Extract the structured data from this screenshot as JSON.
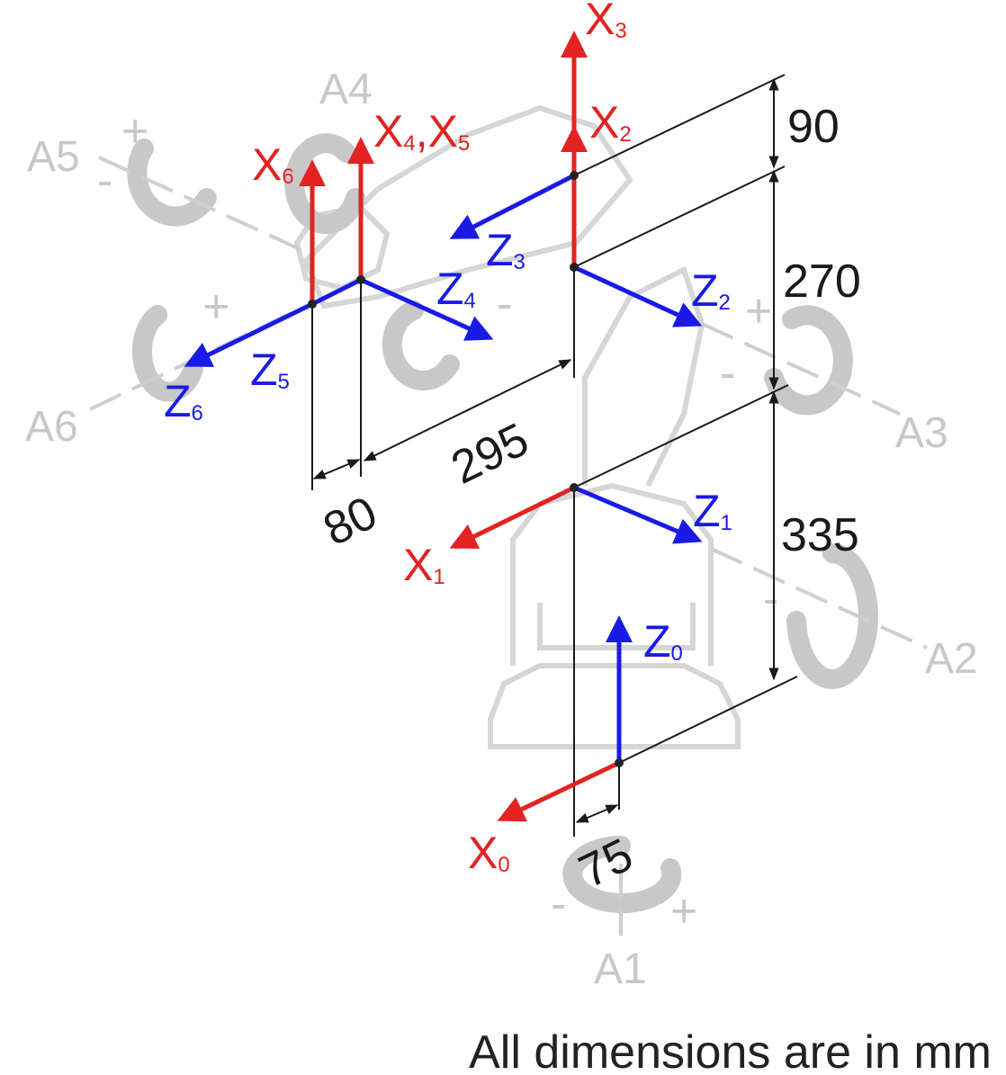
{
  "note": "All dimensions are in mm",
  "colors": {
    "x_axis": "#e32222",
    "z_axis": "#1a1ae6",
    "dimension": "#1a1a1a",
    "ghost": "#c8c8c8"
  },
  "dimensions": {
    "d90": "90",
    "d270": "270",
    "d335": "335",
    "d295": "295",
    "d80": "80",
    "d75": "75"
  },
  "frames": {
    "x0": {
      "main": "X",
      "sub": "0"
    },
    "z0": {
      "main": "Z",
      "sub": "0"
    },
    "x1": {
      "main": "X",
      "sub": "1"
    },
    "z1": {
      "main": "Z",
      "sub": "1"
    },
    "x2": {
      "main": "X",
      "sub": "2"
    },
    "z2": {
      "main": "Z",
      "sub": "2"
    },
    "x3": {
      "main": "X",
      "sub": "3"
    },
    "z3": {
      "main": "Z",
      "sub": "3"
    },
    "x45": {
      "main1": "X",
      "sub1": "4",
      "sep": ",",
      "main2": "X",
      "sub2": "5"
    },
    "z4": {
      "main": "Z",
      "sub": "4"
    },
    "z5": {
      "main": "Z",
      "sub": "5"
    },
    "x6": {
      "main": "X",
      "sub": "6"
    },
    "z6": {
      "main": "Z",
      "sub": "6"
    }
  },
  "joints": {
    "a1": "A1",
    "a2": "A2",
    "a3": "A3",
    "a4": "A4",
    "a5": "A5",
    "a6": "A6"
  },
  "signs": {
    "plus": "+",
    "minus": "-"
  }
}
